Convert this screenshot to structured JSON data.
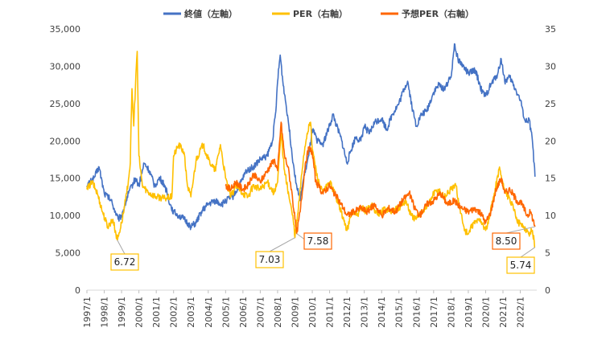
{
  "chart_data": {
    "type": "line",
    "legend_position": "top",
    "grid": false,
    "y_left": {
      "lim": [
        0,
        35000
      ],
      "ticks": [
        "0",
        "5,000",
        "10,000",
        "15,000",
        "20,000",
        "25,000",
        "30,000",
        "35,000"
      ]
    },
    "y_right": {
      "lim": [
        0,
        35
      ],
      "ticks": [
        "0",
        "5",
        "10",
        "15",
        "20",
        "25",
        "30",
        "35"
      ]
    },
    "x_ticks": [
      "1997/1",
      "1998/1",
      "1999/1",
      "2000/1",
      "2001/1",
      "2002/1",
      "2003/1",
      "2004/1",
      "2005/1",
      "2006/1",
      "2007/1",
      "2008/1",
      "2009/1",
      "2010/1",
      "2011/1",
      "2012/1",
      "2013/1",
      "2014/1",
      "2015/1",
      "2016/1",
      "2017/1",
      "2018/1",
      "2019/1",
      "2020/1",
      "2021/1",
      "2022/1"
    ],
    "series": [
      {
        "name": "終値（左軸）",
        "axis": "left",
        "color": "#4472C4",
        "points": [
          [
            1997.0,
            14000
          ],
          [
            1997.4,
            15000
          ],
          [
            1997.7,
            16500
          ],
          [
            1998.0,
            13000
          ],
          [
            1998.4,
            12000
          ],
          [
            1998.8,
            9500
          ],
          [
            1999.0,
            10000
          ],
          [
            1999.4,
            13000
          ],
          [
            1999.8,
            15000
          ],
          [
            2000.0,
            14000
          ],
          [
            2000.3,
            17000
          ],
          [
            2000.6,
            16000
          ],
          [
            2000.9,
            14000
          ],
          [
            2001.2,
            15000
          ],
          [
            2001.5,
            14000
          ],
          [
            2001.8,
            11500
          ],
          [
            2002.0,
            10500
          ],
          [
            2002.3,
            10000
          ],
          [
            2002.6,
            9500
          ],
          [
            2003.0,
            8500
          ],
          [
            2003.3,
            9000
          ],
          [
            2003.6,
            10500
          ],
          [
            2004.0,
            11500
          ],
          [
            2004.4,
            12000
          ],
          [
            2004.8,
            11500
          ],
          [
            2005.0,
            12000
          ],
          [
            2005.4,
            12500
          ],
          [
            2005.8,
            14000
          ],
          [
            2006.2,
            16000
          ],
          [
            2006.6,
            16500
          ],
          [
            2007.0,
            17500
          ],
          [
            2007.4,
            18000
          ],
          [
            2007.7,
            20000
          ],
          [
            2007.9,
            24000
          ],
          [
            2008.0,
            28000
          ],
          [
            2008.15,
            31500
          ],
          [
            2008.3,
            28000
          ],
          [
            2008.6,
            23000
          ],
          [
            2008.9,
            17000
          ],
          [
            2009.1,
            14000
          ],
          [
            2009.3,
            12000
          ],
          [
            2009.5,
            15000
          ],
          [
            2009.8,
            18000
          ],
          [
            2010.0,
            21500
          ],
          [
            2010.3,
            20000
          ],
          [
            2010.6,
            19500
          ],
          [
            2011.0,
            22000
          ],
          [
            2011.2,
            23500
          ],
          [
            2011.4,
            22000
          ],
          [
            2011.7,
            20000
          ],
          [
            2012.0,
            17000
          ],
          [
            2012.2,
            18500
          ],
          [
            2012.5,
            20500
          ],
          [
            2012.8,
            20000
          ],
          [
            2013.0,
            22000
          ],
          [
            2013.3,
            21000
          ],
          [
            2013.6,
            22500
          ],
          [
            2014.0,
            23000
          ],
          [
            2014.3,
            21500
          ],
          [
            2014.6,
            23500
          ],
          [
            2015.0,
            25000
          ],
          [
            2015.3,
            27000
          ],
          [
            2015.5,
            28000
          ],
          [
            2015.8,
            24000
          ],
          [
            2016.0,
            22000
          ],
          [
            2016.3,
            23500
          ],
          [
            2016.6,
            24000
          ],
          [
            2017.0,
            26500
          ],
          [
            2017.3,
            27500
          ],
          [
            2017.6,
            27000
          ],
          [
            2018.0,
            28500
          ],
          [
            2018.2,
            33000
          ],
          [
            2018.4,
            31000
          ],
          [
            2018.7,
            30000
          ],
          [
            2019.0,
            29000
          ],
          [
            2019.4,
            29500
          ],
          [
            2019.8,
            26500
          ],
          [
            2020.0,
            26000
          ],
          [
            2020.3,
            27500
          ],
          [
            2020.7,
            29000
          ],
          [
            2020.9,
            31000
          ],
          [
            2021.1,
            28000
          ],
          [
            2021.4,
            28500
          ],
          [
            2021.7,
            27000
          ],
          [
            2022.0,
            25500
          ],
          [
            2022.3,
            22500
          ],
          [
            2022.5,
            23000
          ],
          [
            2022.7,
            20000
          ],
          [
            2022.85,
            15200
          ]
        ]
      },
      {
        "name": "PER（右軸）",
        "axis": "right",
        "color": "#FFC000",
        "points": [
          [
            1997.0,
            13.5
          ],
          [
            1997.3,
            14.5
          ],
          [
            1997.6,
            13.0
          ],
          [
            1997.9,
            10.5
          ],
          [
            1998.2,
            8.5
          ],
          [
            1998.5,
            9.5
          ],
          [
            1998.75,
            6.72
          ],
          [
            1999.0,
            9.0
          ],
          [
            1999.3,
            13.0
          ],
          [
            1999.5,
            17.0
          ],
          [
            1999.6,
            27.0
          ],
          [
            1999.7,
            22.0
          ],
          [
            1999.85,
            30.0
          ],
          [
            1999.9,
            32.0
          ],
          [
            2000.0,
            18.0
          ],
          [
            2000.2,
            14.0
          ],
          [
            2000.6,
            13.0
          ],
          [
            2001.0,
            12.5
          ],
          [
            2001.5,
            12.3
          ],
          [
            2001.9,
            12.5
          ],
          [
            2002.0,
            18.0
          ],
          [
            2002.3,
            19.5
          ],
          [
            2002.6,
            18.5
          ],
          [
            2002.8,
            14.0
          ],
          [
            2003.0,
            12.5
          ],
          [
            2003.3,
            17.5
          ],
          [
            2003.7,
            19.5
          ],
          [
            2004.0,
            17.5
          ],
          [
            2004.4,
            16.0
          ],
          [
            2004.7,
            19.5
          ],
          [
            2005.0,
            15.0
          ],
          [
            2005.3,
            12.5
          ],
          [
            2005.6,
            14.0
          ],
          [
            2006.0,
            13.0
          ],
          [
            2006.3,
            12.5
          ],
          [
            2006.6,
            14.0
          ],
          [
            2007.0,
            13.5
          ],
          [
            2007.4,
            14.5
          ],
          [
            2007.8,
            13.0
          ],
          [
            2008.0,
            14.5
          ],
          [
            2008.2,
            21.0
          ],
          [
            2008.4,
            16.0
          ],
          [
            2008.7,
            12.0
          ],
          [
            2008.9,
            9.5
          ],
          [
            2009.0,
            7.03
          ],
          [
            2009.2,
            11.0
          ],
          [
            2009.5,
            18.0
          ],
          [
            2009.7,
            21.0
          ],
          [
            2009.9,
            22.5
          ],
          [
            2010.0,
            19.0
          ],
          [
            2010.3,
            15.0
          ],
          [
            2010.6,
            13.0
          ],
          [
            2011.0,
            14.5
          ],
          [
            2011.3,
            13.0
          ],
          [
            2011.6,
            11.0
          ],
          [
            2012.0,
            8.0
          ],
          [
            2012.3,
            10.5
          ],
          [
            2012.6,
            10.0
          ],
          [
            2012.9,
            11.0
          ],
          [
            2013.0,
            10.5
          ],
          [
            2013.4,
            11.5
          ],
          [
            2013.8,
            10.0
          ],
          [
            2014.2,
            11.0
          ],
          [
            2014.6,
            10.5
          ],
          [
            2015.0,
            11.0
          ],
          [
            2015.4,
            12.0
          ],
          [
            2015.7,
            10.0
          ],
          [
            2016.0,
            9.5
          ],
          [
            2016.3,
            10.5
          ],
          [
            2016.7,
            11.5
          ],
          [
            2017.0,
            13.0
          ],
          [
            2017.3,
            13.5
          ],
          [
            2017.6,
            12.5
          ],
          [
            2018.0,
            13.5
          ],
          [
            2018.3,
            14.0
          ],
          [
            2018.5,
            11.0
          ],
          [
            2018.8,
            8.0
          ],
          [
            2019.0,
            7.5
          ],
          [
            2019.3,
            9.0
          ],
          [
            2019.7,
            9.5
          ],
          [
            2020.0,
            8.0
          ],
          [
            2020.2,
            9.5
          ],
          [
            2020.5,
            13.0
          ],
          [
            2020.8,
            16.5
          ],
          [
            2021.0,
            14.0
          ],
          [
            2021.3,
            12.5
          ],
          [
            2021.6,
            11.0
          ],
          [
            2021.9,
            9.0
          ],
          [
            2022.2,
            8.5
          ],
          [
            2022.5,
            7.5
          ],
          [
            2022.7,
            8.0
          ],
          [
            2022.85,
            5.74
          ]
        ]
      },
      {
        "name": "予想PER（右軸）",
        "axis": "right",
        "color": "#FF6600",
        "points": [
          [
            2005.0,
            14.0
          ],
          [
            2005.3,
            13.5
          ],
          [
            2005.6,
            14.5
          ],
          [
            2006.0,
            13.5
          ],
          [
            2006.3,
            14.0
          ],
          [
            2006.6,
            15.5
          ],
          [
            2007.0,
            14.5
          ],
          [
            2007.4,
            16.0
          ],
          [
            2007.8,
            17.5
          ],
          [
            2008.0,
            16.0
          ],
          [
            2008.2,
            22.5
          ],
          [
            2008.4,
            18.0
          ],
          [
            2008.6,
            16.5
          ],
          [
            2008.8,
            13.5
          ],
          [
            2009.0,
            9.5
          ],
          [
            2009.1,
            7.58
          ],
          [
            2009.3,
            10.5
          ],
          [
            2009.6,
            17.0
          ],
          [
            2009.8,
            19.0
          ],
          [
            2010.0,
            18.5
          ],
          [
            2010.2,
            14.5
          ],
          [
            2010.6,
            13.0
          ],
          [
            2011.0,
            14.0
          ],
          [
            2011.4,
            12.5
          ],
          [
            2011.8,
            11.0
          ],
          [
            2012.0,
            10.0
          ],
          [
            2012.4,
            10.5
          ],
          [
            2012.8,
            11.0
          ],
          [
            2013.2,
            10.5
          ],
          [
            2013.6,
            11.5
          ],
          [
            2014.0,
            10.0
          ],
          [
            2014.4,
            11.0
          ],
          [
            2014.8,
            10.5
          ],
          [
            2015.2,
            12.0
          ],
          [
            2015.6,
            13.0
          ],
          [
            2015.9,
            11.0
          ],
          [
            2016.2,
            10.0
          ],
          [
            2016.6,
            11.5
          ],
          [
            2017.0,
            12.0
          ],
          [
            2017.4,
            13.0
          ],
          [
            2017.8,
            11.5
          ],
          [
            2018.2,
            12.0
          ],
          [
            2018.6,
            11.0
          ],
          [
            2019.0,
            10.5
          ],
          [
            2019.4,
            11.0
          ],
          [
            2019.8,
            10.0
          ],
          [
            2020.0,
            9.0
          ],
          [
            2020.3,
            10.5
          ],
          [
            2020.6,
            13.5
          ],
          [
            2020.9,
            15.0
          ],
          [
            2021.1,
            13.0
          ],
          [
            2021.4,
            13.5
          ],
          [
            2021.8,
            12.0
          ],
          [
            2022.1,
            11.5
          ],
          [
            2022.4,
            10.0
          ],
          [
            2022.6,
            10.5
          ],
          [
            2022.85,
            8.5
          ]
        ]
      }
    ],
    "annotations": [
      {
        "label": "6.72",
        "x": 1998.75,
        "y": 6.72,
        "series": "PER（右軸）",
        "border": "#FFC000"
      },
      {
        "label": "7.03",
        "x": 2009.0,
        "y": 7.03,
        "series": "PER（右軸）",
        "border": "#FFC000"
      },
      {
        "label": "7.58",
        "x": 2009.1,
        "y": 7.58,
        "series": "予想PER（右軸）",
        "border": "#FF6600"
      },
      {
        "label": "8.50",
        "x": 2022.85,
        "y": 8.5,
        "series": "予想PER（右軸）",
        "border": "#FF6600"
      },
      {
        "label": "5.74",
        "x": 2022.85,
        "y": 5.74,
        "series": "PER（右軸）",
        "border": "#FFC000"
      }
    ]
  }
}
